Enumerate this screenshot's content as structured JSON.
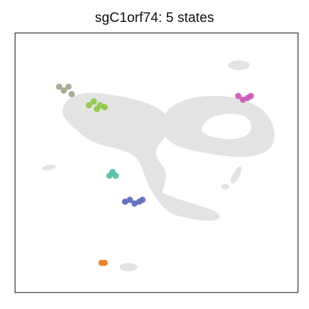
{
  "chart_data": {
    "type": "scatter",
    "title": "sgC1orf74: 5 states",
    "xlabel": "",
    "ylabel": "",
    "grid": false,
    "axes_ticks": false,
    "background": {
      "color": "#e3e3e3",
      "description": "grey background cell embedding (UMAP-like)"
    },
    "series": [
      {
        "color": "#a3a892",
        "points": [
          [
            -6.2,
            3.6
          ],
          [
            -5.9,
            3.4
          ],
          [
            -5.6,
            3.6
          ],
          [
            -5.4,
            3.2
          ]
        ]
      },
      {
        "color": "#90c94a",
        "points": [
          [
            -4.3,
            2.6
          ],
          [
            -4.0,
            2.8
          ],
          [
            -3.8,
            2.4
          ],
          [
            -3.6,
            2.6
          ],
          [
            -3.3,
            2.5
          ]
        ]
      },
      {
        "color": "#cc5ab4",
        "points": [
          [
            5.2,
            3.1
          ],
          [
            5.5,
            2.9
          ],
          [
            5.8,
            3.0
          ],
          [
            6.0,
            3.1
          ]
        ]
      },
      {
        "color": "#55c0a8",
        "points": [
          [
            -3.0,
            -1.2
          ],
          [
            -2.8,
            -1.0
          ],
          [
            -2.6,
            -1.2
          ]
        ]
      },
      {
        "color": "#5f6fbc",
        "points": [
          [
            -2.0,
            -2.6
          ],
          [
            -1.7,
            -2.5
          ],
          [
            -1.4,
            -2.7
          ],
          [
            -1.1,
            -2.6
          ],
          [
            -0.9,
            -2.5
          ]
        ]
      },
      {
        "color": "#e58224",
        "points": [
          [
            -3.5,
            -5.9
          ],
          [
            -3.3,
            -5.9
          ]
        ]
      }
    ],
    "xlim": [
      -9,
      9
    ],
    "ylim": [
      -7.5,
      6.5
    ]
  }
}
